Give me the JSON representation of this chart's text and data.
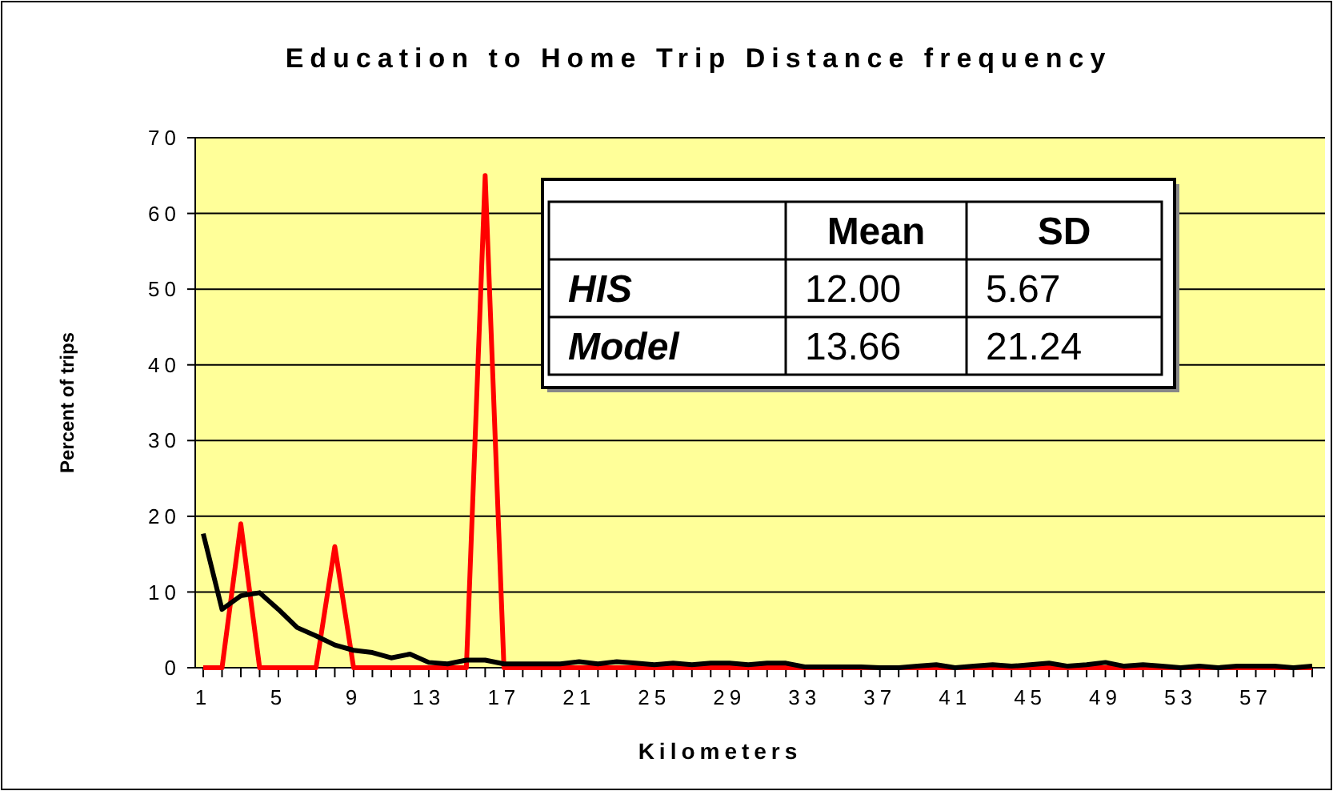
{
  "chart_data": {
    "type": "line",
    "title": "Education to Home Trip Distance frequency",
    "xlabel": "Kilometers",
    "ylabel": "Percent of trips",
    "categories": [
      "1",
      null,
      null,
      null,
      "5",
      null,
      null,
      null,
      "9",
      null,
      null,
      null,
      "13",
      null,
      null,
      null,
      "17",
      null,
      null,
      null,
      "21",
      null,
      null,
      null,
      "25",
      null,
      null,
      null,
      "29",
      null,
      null,
      null,
      "33",
      null,
      null,
      null,
      "37",
      null,
      null,
      null,
      "41",
      null,
      null,
      null,
      "45",
      null,
      null,
      null,
      "49",
      null,
      null,
      null,
      "53",
      null,
      null,
      null,
      "57",
      null,
      null,
      null
    ],
    "series": [
      {
        "color": "#ff0000",
        "values": [
          0,
          0,
          19,
          0,
          0,
          0,
          0,
          16,
          0,
          0,
          0,
          0,
          0,
          0,
          0,
          65,
          0,
          0,
          0,
          0,
          0,
          0,
          0,
          0,
          0,
          0,
          0,
          0,
          0,
          0,
          0,
          0,
          0,
          0,
          0,
          0,
          0,
          0,
          0,
          0,
          0,
          0,
          0,
          0,
          0,
          0,
          0,
          0,
          0,
          0,
          0,
          0,
          0,
          0,
          0,
          0,
          0,
          0,
          0,
          0
        ]
      },
      {
        "color": "#000000",
        "values": [
          17.7,
          7.7,
          9.5,
          9.9,
          7.7,
          5.3,
          4.2,
          3.0,
          2.3,
          2.0,
          1.3,
          1.8,
          0.7,
          0.5,
          1.0,
          1.0,
          0.5,
          0.5,
          0.5,
          0.5,
          0.8,
          0.5,
          0.8,
          0.6,
          0.4,
          0.6,
          0.4,
          0.6,
          0.6,
          0.4,
          0.6,
          0.6,
          0.1,
          0.1,
          0.1,
          0.1,
          0.0,
          0.0,
          0.2,
          0.4,
          0.0,
          0.2,
          0.4,
          0.2,
          0.4,
          0.6,
          0.2,
          0.4,
          0.7,
          0.2,
          0.4,
          0.2,
          0.0,
          0.2,
          0.0,
          0.2,
          0.2,
          0.2,
          0.0,
          0.2
        ]
      }
    ],
    "ylim": [
      0,
      70
    ],
    "yticks": [
      0,
      10,
      20,
      30,
      40,
      50,
      60,
      70
    ],
    "grid": "y",
    "marker": "none",
    "line_style": "solid",
    "annotations": [
      "Mean",
      "SD",
      "HIS",
      "12.00",
      "5.67",
      "Model",
      "13.66",
      "21.24"
    ]
  }
}
